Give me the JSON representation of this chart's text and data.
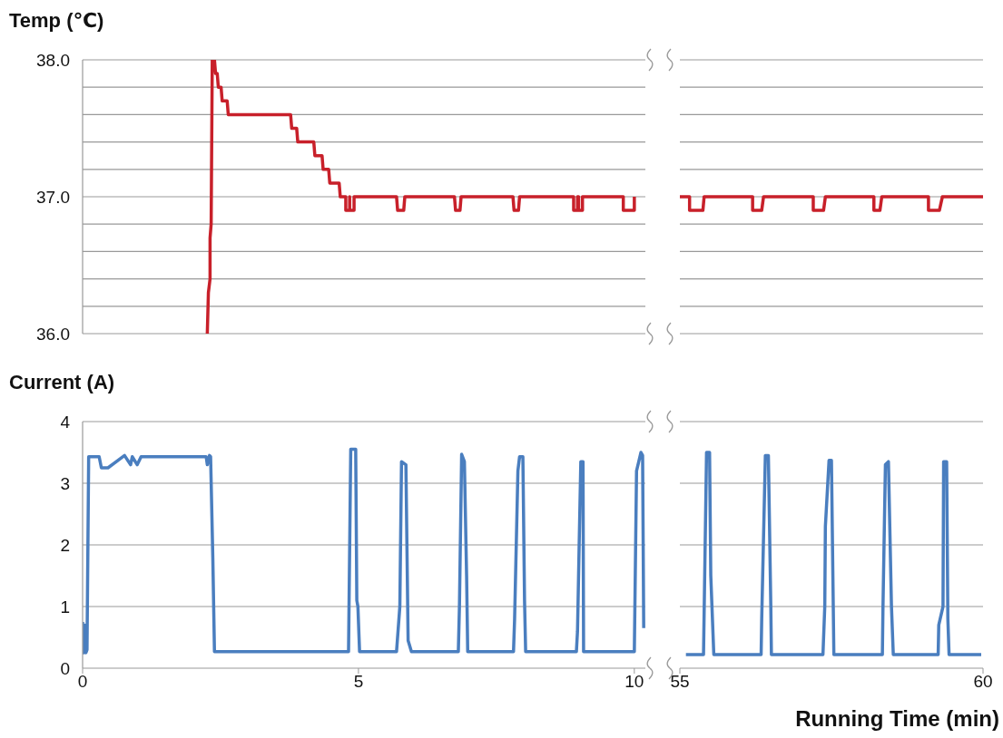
{
  "chart_data": [
    {
      "type": "line",
      "ylabel": "Temp (℃)",
      "color": "#c8202a",
      "xlim": [
        0,
        10.2
      ],
      "ylim": [
        36,
        38
      ],
      "yticks": [
        {
          "value": 36,
          "label": "36.0"
        },
        {
          "value": 36.2,
          "label": null
        },
        {
          "value": 36.4,
          "label": null
        },
        {
          "value": 36.6,
          "label": null
        },
        {
          "value": 36.8,
          "label": null
        },
        {
          "value": 37,
          "label": "37.0"
        },
        {
          "value": 37.2,
          "label": null
        },
        {
          "value": 37.4,
          "label": null
        },
        {
          "value": 37.6,
          "label": null
        },
        {
          "value": 37.8,
          "label": null
        },
        {
          "value": 38,
          "label": "38.0"
        }
      ],
      "grid": "y",
      "tick_labels": "y",
      "x": [
        2.26,
        2.28,
        2.31,
        2.31,
        2.33,
        2.35,
        2.39,
        2.41,
        2.44,
        2.46,
        2.51,
        2.53,
        2.62,
        2.64,
        3.77,
        3.79,
        3.88,
        3.9,
        4.19,
        4.21,
        4.34,
        4.36,
        4.46,
        4.48,
        4.65,
        4.67,
        4.77,
        4.77,
        4.84,
        4.84,
        4.84,
        4.92,
        4.92,
        5.69,
        5.71,
        5.82,
        5.84,
        6.74,
        6.76,
        6.84,
        6.86,
        7.8,
        7.82,
        7.9,
        7.92,
        8.9,
        8.9,
        8.97,
        8.97,
        8.99,
        8.99,
        9.06,
        9.06,
        9.8,
        9.8,
        10.0,
        10.0
      ],
      "values": [
        36.0,
        36.3,
        36.4,
        36.7,
        36.8,
        38.0,
        38.0,
        37.9,
        37.9,
        37.8,
        37.8,
        37.7,
        37.7,
        37.6,
        37.6,
        37.5,
        37.5,
        37.4,
        37.4,
        37.3,
        37.3,
        37.2,
        37.2,
        37.1,
        37.1,
        37.0,
        37.0,
        36.9,
        36.9,
        37.0,
        36.9,
        36.9,
        37.0,
        37.0,
        36.9,
        36.9,
        37.0,
        37.0,
        36.9,
        36.9,
        37.0,
        37.0,
        36.9,
        36.9,
        37.0,
        37.0,
        36.9,
        36.9,
        37.0,
        37.0,
        36.9,
        36.9,
        37.0,
        37.0,
        36.9,
        36.9,
        37.0
      ]
    },
    {
      "type": "line",
      "color": "#c8202a",
      "xlim": [
        55,
        60
      ],
      "ylim": [
        36,
        38
      ],
      "yticks": [
        36,
        36.2,
        36.4,
        36.6,
        36.8,
        37,
        37.2,
        37.4,
        37.6,
        37.8,
        38
      ],
      "grid": "y",
      "tick_labels": false,
      "x": [
        55.0,
        55.16,
        55.16,
        55.38,
        55.4,
        56.2,
        56.2,
        56.35,
        56.38,
        57.2,
        57.2,
        57.37,
        57.4,
        58.2,
        58.2,
        58.3,
        58.33,
        59.1,
        59.1,
        59.28,
        59.33,
        60.0
      ],
      "values": [
        37.0,
        37.0,
        36.9,
        36.9,
        37.0,
        37.0,
        36.9,
        36.9,
        37.0,
        37.0,
        36.9,
        36.9,
        37.0,
        37.0,
        36.9,
        36.9,
        37.0,
        37.0,
        36.9,
        36.9,
        37.0,
        37.0
      ]
    },
    {
      "type": "line",
      "ylabel": "Current (A)",
      "color": "#4a7ebf",
      "xlim": [
        0,
        10.2
      ],
      "xticks": [
        0,
        5,
        10
      ],
      "ylim": [
        0,
        4
      ],
      "yticks": [
        0,
        1,
        2,
        3,
        4
      ],
      "grid": "y",
      "x": [
        0.0,
        0.02,
        0.04,
        0.06,
        0.08,
        0.11,
        0.3,
        0.34,
        0.46,
        0.76,
        0.87,
        0.9,
        0.99,
        1.06,
        2.24,
        2.26,
        2.3,
        2.32,
        2.36,
        2.39,
        4.82,
        4.83,
        4.86,
        4.95,
        4.97,
        4.99,
        5.02,
        5.69,
        5.75,
        5.78,
        5.86,
        5.9,
        5.96,
        6.81,
        6.83,
        6.87,
        6.92,
        6.96,
        6.98,
        7.81,
        7.83,
        7.89,
        7.92,
        7.98,
        8.01,
        8.03,
        8.95,
        8.97,
        9.0,
        9.03,
        9.07,
        9.08,
        10.0,
        10.01,
        10.04,
        10.12,
        10.15,
        10.17
      ],
      "values": [
        0.75,
        0.25,
        0.7,
        0.25,
        0.3,
        3.43,
        3.43,
        3.25,
        3.25,
        3.45,
        3.3,
        3.43,
        3.3,
        3.43,
        3.43,
        3.3,
        3.45,
        3.43,
        1.8,
        0.27,
        0.27,
        1.1,
        3.55,
        3.55,
        1.1,
        1.0,
        0.27,
        0.27,
        1.0,
        3.35,
        3.3,
        0.45,
        0.27,
        0.27,
        1.0,
        3.47,
        3.35,
        1.5,
        0.27,
        0.27,
        0.8,
        3.2,
        3.43,
        3.43,
        1.1,
        0.27,
        0.27,
        0.6,
        2.0,
        3.35,
        3.35,
        0.27,
        0.27,
        1.0,
        3.2,
        3.5,
        3.45,
        0.65
      ]
    },
    {
      "type": "line",
      "xlabel": "Running Time (min)",
      "color": "#4a7ebf",
      "xlim": [
        55,
        60
      ],
      "xticks": [
        55,
        60
      ],
      "ylim": [
        0,
        4
      ],
      "yticks": [
        0,
        1,
        2,
        3,
        4
      ],
      "grid": "y",
      "tick_labels": "x",
      "x": [
        55.1,
        55.39,
        55.44,
        55.49,
        55.51,
        55.56,
        56.34,
        56.35,
        56.41,
        56.46,
        56.5,
        56.51,
        57.36,
        57.39,
        57.4,
        57.46,
        57.5,
        57.54,
        58.34,
        58.35,
        58.39,
        58.44,
        58.49,
        58.52,
        59.26,
        59.27,
        59.34,
        59.35,
        59.4,
        59.42,
        59.44,
        59.97
      ],
      "values": [
        0.22,
        0.22,
        3.5,
        3.5,
        1.5,
        0.22,
        0.22,
        0.8,
        3.45,
        3.45,
        1.0,
        0.22,
        0.22,
        1.0,
        2.3,
        3.37,
        3.37,
        0.22,
        0.22,
        1.0,
        3.3,
        3.35,
        1.0,
        0.22,
        0.22,
        0.7,
        1.0,
        3.35,
        3.35,
        0.8,
        0.22,
        0.22
      ]
    }
  ]
}
